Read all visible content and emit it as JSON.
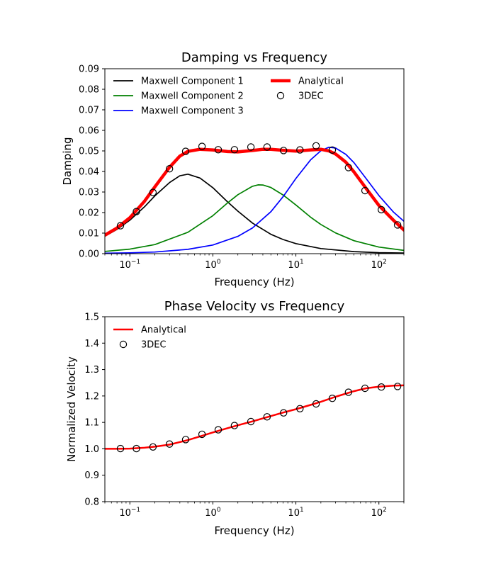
{
  "chart_data": [
    {
      "type": "line",
      "title": "Damping vs Frequency",
      "xlabel": "Frequency (Hz)",
      "ylabel": "Damping",
      "xscale": "log",
      "xlim": [
        0.05,
        200
      ],
      "ylim": [
        0,
        0.09
      ],
      "x_ticks": [
        {
          "base": "10",
          "exp": "−1",
          "value": 0.1
        },
        {
          "base": "10",
          "exp": "0",
          "value": 1
        },
        {
          "base": "10",
          "exp": "1",
          "value": 10
        },
        {
          "base": "10",
          "exp": "2",
          "value": 100
        }
      ],
      "y_ticks": [
        "0.00",
        "0.01",
        "0.02",
        "0.03",
        "0.04",
        "0.05",
        "0.06",
        "0.07",
        "0.08",
        "0.09"
      ],
      "grid": false,
      "legend_placement": "top",
      "series": [
        {
          "name": "Maxwell Component 1",
          "kind": "line",
          "color": "#000000",
          "x": [
            0.05,
            0.07,
            0.1,
            0.15,
            0.2,
            0.3,
            0.4,
            0.5,
            0.7,
            1,
            1.5,
            2,
            3,
            5,
            7,
            10,
            20,
            50,
            100,
            200
          ],
          "y": [
            0.0085,
            0.0118,
            0.0163,
            0.0228,
            0.0281,
            0.0346,
            0.0379,
            0.0387,
            0.0368,
            0.0321,
            0.0252,
            0.0207,
            0.0149,
            0.0094,
            0.0069,
            0.0049,
            0.0025,
            0.001,
            0.0005,
            0.0003
          ]
        },
        {
          "name": "Maxwell Component 2",
          "kind": "line",
          "color": "#008000",
          "x": [
            0.05,
            0.1,
            0.2,
            0.5,
            1,
            1.5,
            2,
            3,
            3.5,
            4,
            5,
            7,
            10,
            15,
            20,
            30,
            50,
            100,
            200
          ],
          "y": [
            0.0011,
            0.0022,
            0.0044,
            0.0104,
            0.0185,
            0.0247,
            0.0287,
            0.0328,
            0.0335,
            0.0334,
            0.0322,
            0.0286,
            0.0237,
            0.0178,
            0.0142,
            0.0101,
            0.0063,
            0.0032,
            0.0016
          ]
        },
        {
          "name": "Maxwell Component 3",
          "kind": "line",
          "color": "#0000ff",
          "x": [
            0.05,
            0.1,
            0.2,
            0.5,
            1,
            2,
            3,
            5,
            7,
            10,
            15,
            20,
            25,
            30,
            40,
            50,
            70,
            100,
            150,
            200
          ],
          "y": [
            0.0002,
            0.0004,
            0.0008,
            0.0021,
            0.0042,
            0.0084,
            0.0125,
            0.0204,
            0.0277,
            0.0366,
            0.0456,
            0.0501,
            0.0518,
            0.0514,
            0.0483,
            0.0443,
            0.0366,
            0.0283,
            0.0202,
            0.0158
          ]
        },
        {
          "name": "Analytical",
          "kind": "line",
          "color": "#ff0000",
          "x": [
            0.05,
            0.07,
            0.1,
            0.15,
            0.2,
            0.3,
            0.4,
            0.5,
            0.7,
            1,
            1.5,
            2,
            3,
            4,
            5,
            7,
            10,
            15,
            20,
            25,
            30,
            40,
            50,
            70,
            100,
            150,
            200
          ],
          "y": [
            0.009,
            0.0125,
            0.0175,
            0.0255,
            0.0325,
            0.042,
            0.0475,
            0.0498,
            0.0508,
            0.0505,
            0.0497,
            0.0495,
            0.0502,
            0.0508,
            0.0508,
            0.0503,
            0.0499,
            0.0505,
            0.0508,
            0.05,
            0.0485,
            0.0445,
            0.0398,
            0.0318,
            0.0235,
            0.0162,
            0.0115
          ]
        },
        {
          "name": "3DEC",
          "kind": "markers",
          "color": "#000000",
          "x": [
            0.077,
            0.12,
            0.19,
            0.3,
            0.47,
            0.74,
            1.16,
            1.82,
            2.87,
            4.5,
            7.1,
            11.2,
            17.5,
            27.5,
            43,
            68,
            107,
            168
          ],
          "y": [
            0.0136,
            0.0205,
            0.0298,
            0.0413,
            0.0498,
            0.0522,
            0.0506,
            0.0506,
            0.0519,
            0.0519,
            0.0502,
            0.0505,
            0.0525,
            0.0504,
            0.0419,
            0.0307,
            0.0214,
            0.014
          ]
        }
      ]
    },
    {
      "type": "line",
      "title": "Phase Velocity vs Frequency",
      "xlabel": "Frequency (Hz)",
      "ylabel": "Normalized Velocity",
      "xscale": "log",
      "xlim": [
        0.05,
        200
      ],
      "ylim": [
        0.8,
        1.5
      ],
      "x_ticks": [
        {
          "base": "10",
          "exp": "−1",
          "value": 0.1
        },
        {
          "base": "10",
          "exp": "0",
          "value": 1
        },
        {
          "base": "10",
          "exp": "1",
          "value": 10
        },
        {
          "base": "10",
          "exp": "2",
          "value": 100
        }
      ],
      "y_ticks": [
        "0.8",
        "0.9",
        "1.0",
        "1.1",
        "1.2",
        "1.3",
        "1.4",
        "1.5"
      ],
      "grid": false,
      "legend_placement": "top-left",
      "series": [
        {
          "name": "Analytical",
          "kind": "line",
          "color": "#ff0000",
          "x": [
            0.05,
            0.07,
            0.1,
            0.15,
            0.2,
            0.3,
            0.5,
            0.7,
            1,
            1.5,
            2,
            3,
            5,
            7,
            10,
            15,
            20,
            30,
            50,
            70,
            100,
            150,
            200
          ],
          "y": [
            1.0,
            1.0,
            1.001,
            1.004,
            1.008,
            1.016,
            1.033,
            1.047,
            1.062,
            1.078,
            1.089,
            1.104,
            1.124,
            1.137,
            1.15,
            1.166,
            1.178,
            1.197,
            1.218,
            1.229,
            1.235,
            1.239,
            1.24
          ]
        },
        {
          "name": "3DEC",
          "kind": "markers",
          "color": "#000000",
          "x": [
            0.077,
            0.12,
            0.19,
            0.3,
            0.47,
            0.74,
            1.16,
            1.82,
            2.87,
            4.5,
            7.1,
            11.2,
            17.5,
            27.5,
            43,
            68,
            107,
            168
          ],
          "y": [
            1.001,
            1.001,
            1.007,
            1.018,
            1.035,
            1.055,
            1.072,
            1.088,
            1.103,
            1.121,
            1.136,
            1.152,
            1.17,
            1.191,
            1.214,
            1.229,
            1.234,
            1.236
          ]
        }
      ]
    }
  ]
}
